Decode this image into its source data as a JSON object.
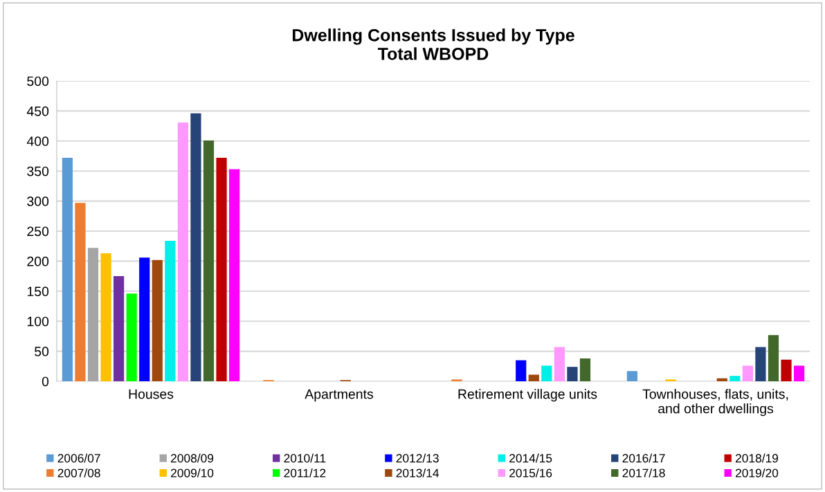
{
  "chart_data": {
    "type": "bar",
    "title": "Dwelling Consents Issued by Type\nTotal WBOPD",
    "categories": [
      "Houses",
      "Apartments",
      "Retirement village units",
      "Townhouses, flats, units,\nand other dwellings"
    ],
    "series": [
      {
        "name": "2006/07",
        "color": "#5b9bd5",
        "values": [
          372,
          null,
          null,
          17
        ]
      },
      {
        "name": "2007/08",
        "color": "#ed7d31",
        "values": [
          297,
          2,
          3,
          null
        ]
      },
      {
        "name": "2008/09",
        "color": "#a5a5a5",
        "values": [
          222,
          null,
          null,
          null
        ]
      },
      {
        "name": "2009/10",
        "color": "#ffc000",
        "values": [
          213,
          null,
          null,
          3
        ]
      },
      {
        "name": "2010/11",
        "color": "#7030a0",
        "values": [
          175,
          null,
          null,
          null
        ]
      },
      {
        "name": "2011/12",
        "color": "#00ff00",
        "values": [
          146,
          null,
          null,
          null
        ]
      },
      {
        "name": "2012/13",
        "color": "#0000ff",
        "values": [
          206,
          null,
          35,
          null
        ]
      },
      {
        "name": "2013/14",
        "color": "#9e480e",
        "values": [
          202,
          2,
          11,
          5
        ]
      },
      {
        "name": "2014/15",
        "color": "#00f0e8",
        "values": [
          234,
          null,
          26,
          9
        ]
      },
      {
        "name": "2015/16",
        "color": "#ff99ff",
        "values": [
          431,
          null,
          57,
          26
        ]
      },
      {
        "name": "2016/17",
        "color": "#264478",
        "values": [
          446,
          null,
          24,
          57
        ]
      },
      {
        "name": "2017/18",
        "color": "#43682b",
        "values": [
          401,
          null,
          38,
          77
        ]
      },
      {
        "name": "2018/19",
        "color": "#c00000",
        "values": [
          372,
          null,
          null,
          36
        ]
      },
      {
        "name": "2019/20",
        "color": "#ff00ff",
        "values": [
          353,
          null,
          null,
          26
        ]
      }
    ],
    "ylim": [
      0,
      500
    ],
    "yticks": [
      0,
      50,
      100,
      150,
      200,
      250,
      300,
      350,
      400,
      450,
      500
    ],
    "grid": "y",
    "legend": "bottom"
  }
}
